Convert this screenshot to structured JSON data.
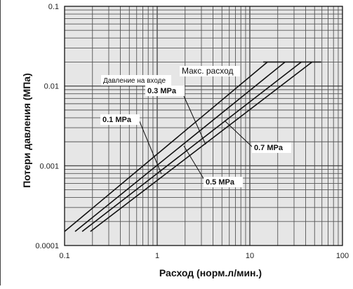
{
  "chart_data": {
    "type": "line",
    "xscale": "log",
    "yscale": "log",
    "xlim": [
      0.1,
      100
    ],
    "ylim": [
      0.0001,
      0.1
    ],
    "grid": true,
    "xlabel": "Расход (норм.л/мин.)",
    "ylabel": "Потери давления (МПа)",
    "x_ticks": [
      "0.1",
      "1",
      "10",
      "100"
    ],
    "y_ticks": [
      "0.0001",
      "0.001",
      "0.01",
      "0.1"
    ],
    "series_header": "Давление на входе",
    "max_flow_label": "Макс. расход",
    "max_flow_pressure_drop": 0.02,
    "series": [
      {
        "name": "0.1 MPa",
        "x": [
          0.1,
          15.5
        ],
        "y": [
          0.00015,
          0.02
        ]
      },
      {
        "name": "0.3 MPa",
        "x": [
          0.13,
          24
        ],
        "y": [
          0.00015,
          0.02
        ]
      },
      {
        "name": "0.5 MPa",
        "x": [
          0.155,
          36
        ],
        "y": [
          0.00015,
          0.02
        ]
      },
      {
        "name": "0.7 MPa",
        "x": [
          0.19,
          47
        ],
        "y": [
          0.00015,
          0.02
        ]
      }
    ]
  }
}
